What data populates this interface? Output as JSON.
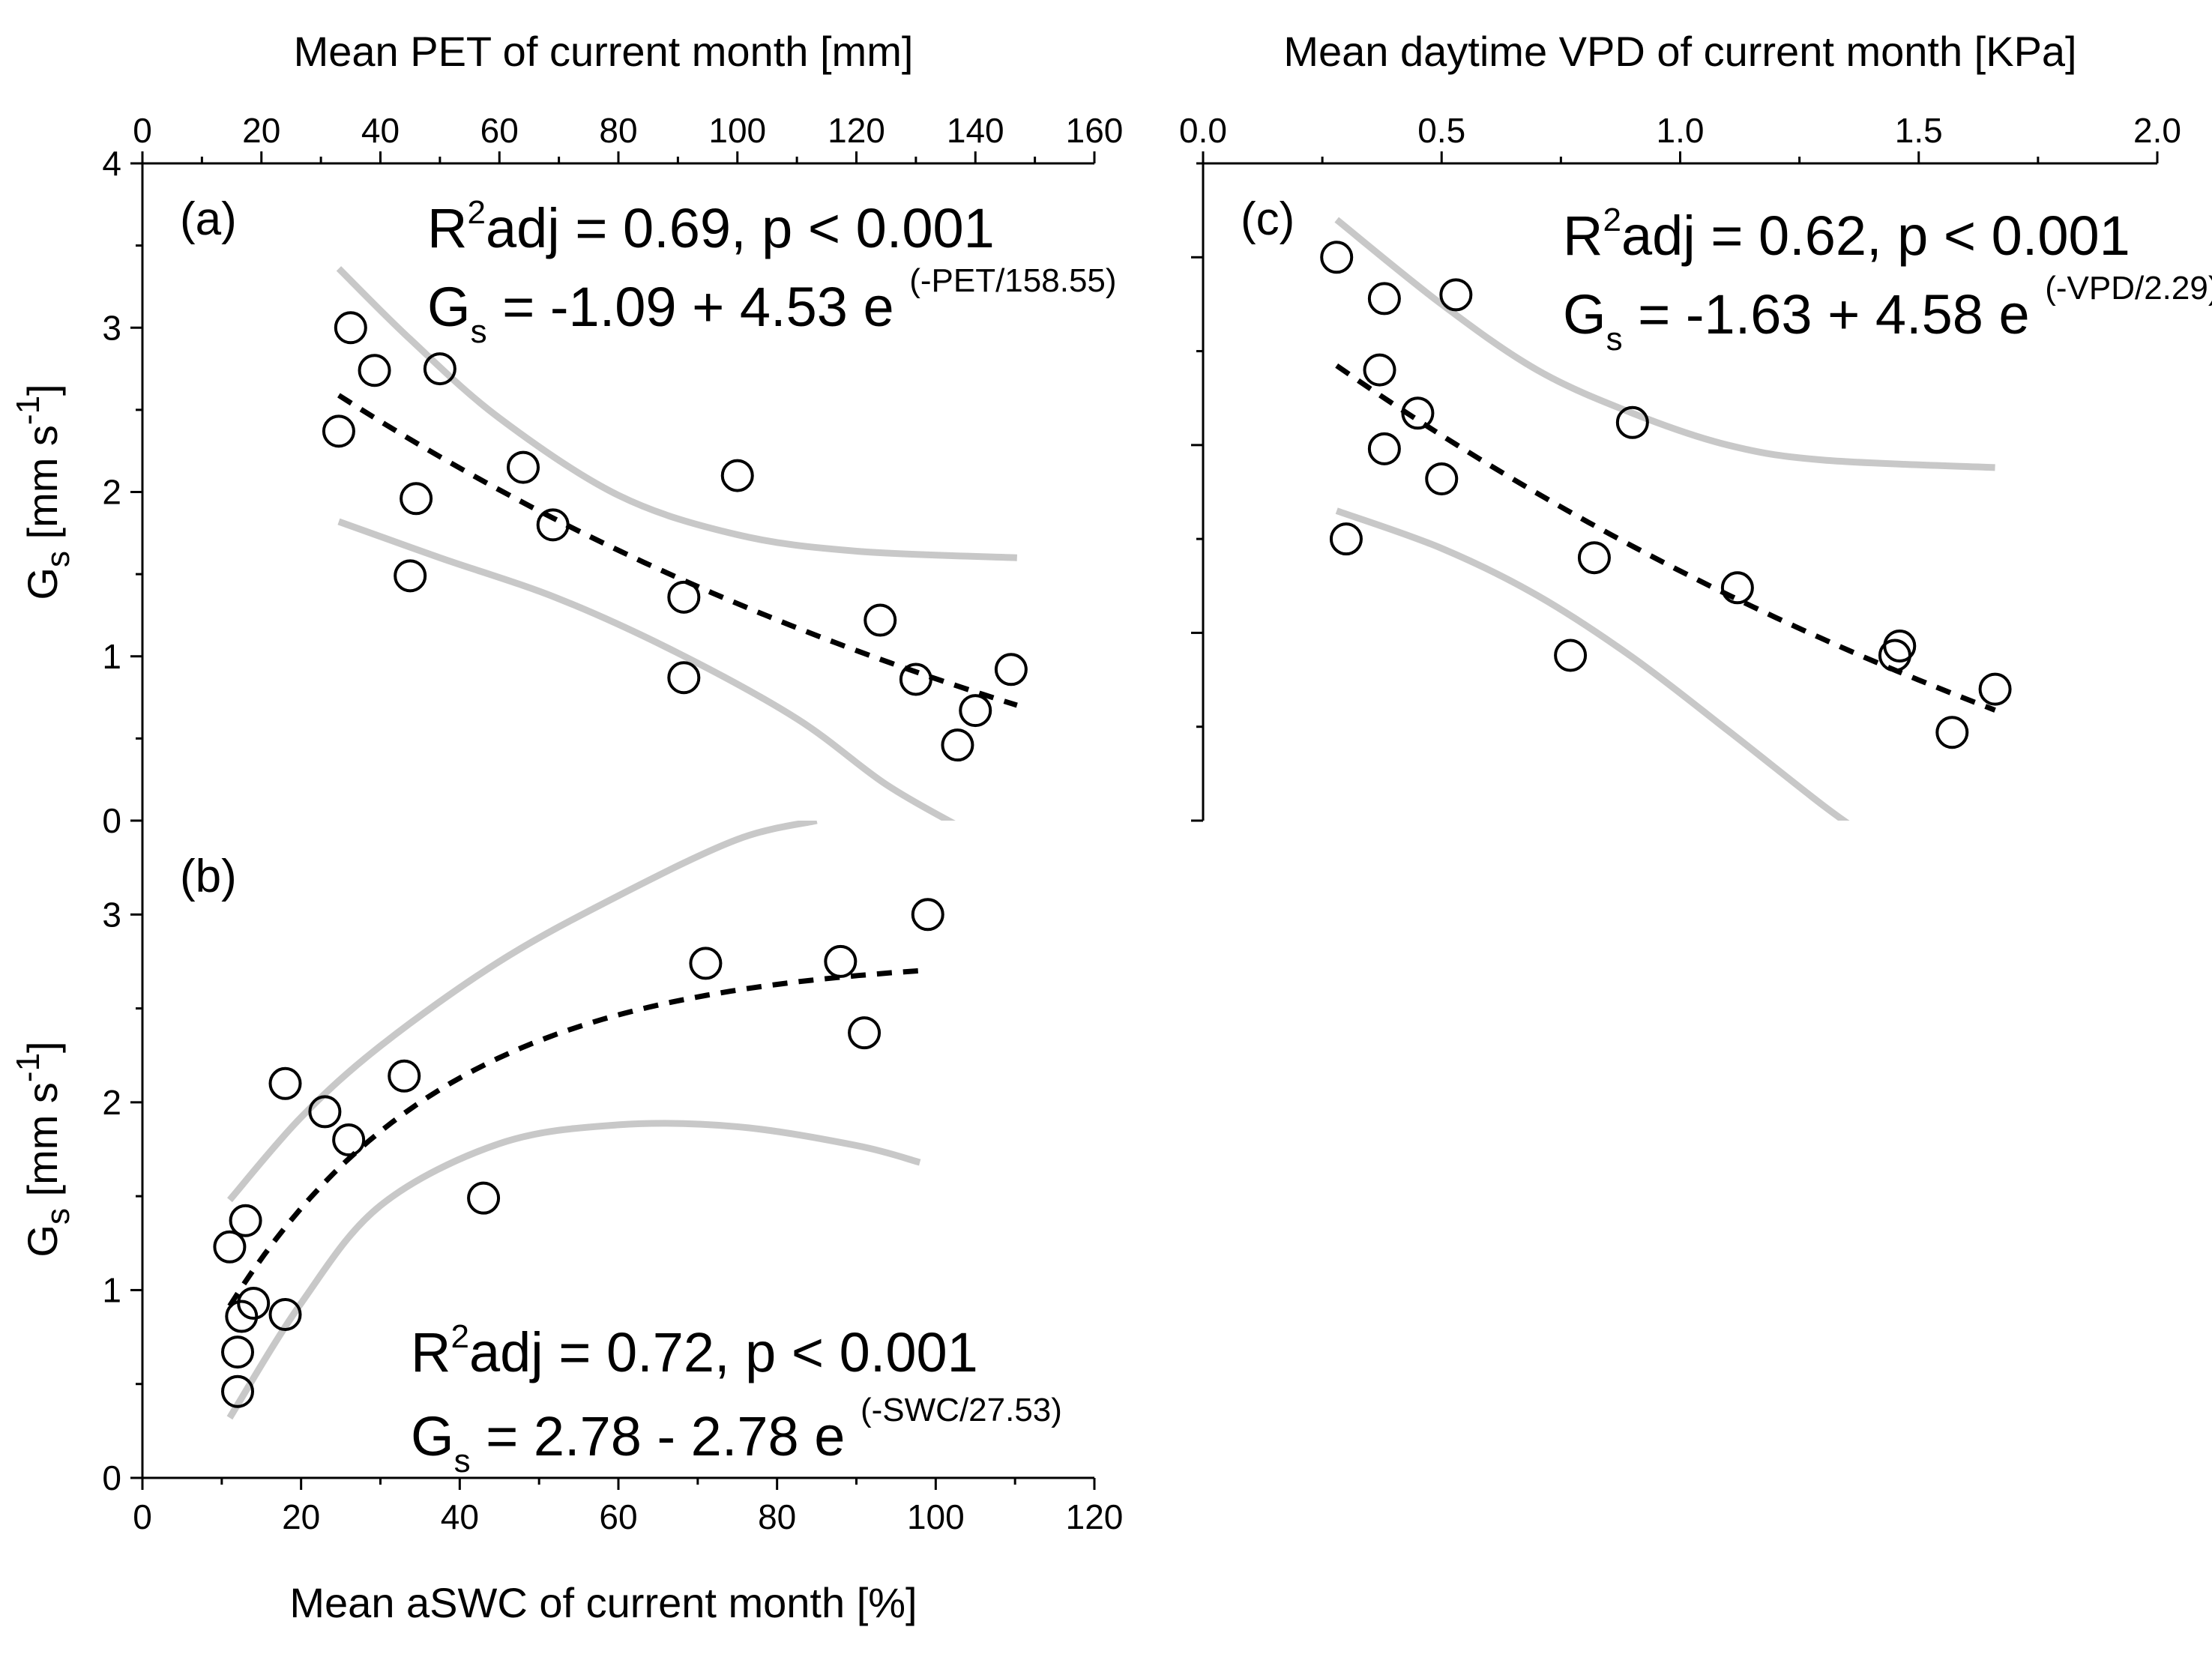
{
  "chart_data": [
    {
      "id": "a",
      "type": "scatter",
      "panel_label": "(a)",
      "xlabel": "Mean PET of current month [mm]",
      "ylabel": "G",
      "ylabel_sub": "s",
      "ylabel_unit_pre": " [mm s",
      "ylabel_unit_sup": "-1",
      "ylabel_unit_post": "]",
      "xlim": [
        0,
        160
      ],
      "ylim": [
        0,
        4
      ],
      "xticks": [
        "0",
        "20",
        "40",
        "60",
        "80",
        "100",
        "120",
        "140",
        "160"
      ],
      "yticks": [
        "0",
        "1",
        "2",
        "3",
        "4"
      ],
      "stats_text": "adj = 0.69, p < 0.001",
      "stats_prefix": "R",
      "stats_sup": "2",
      "eq_lhs": "G",
      "eq_lhs_sub": "s",
      "eq_rhs": " = -1.09 + 4.53 e ",
      "eq_exp": "(-PET/158.55)",
      "fit": {
        "a": -1.09,
        "b": 4.53,
        "c": 158.55,
        "x_range": [
          33,
          147
        ]
      },
      "ci_upper": [
        [
          33,
          3.36
        ],
        [
          45,
          2.93
        ],
        [
          60,
          2.45
        ],
        [
          80,
          1.98
        ],
        [
          100,
          1.74
        ],
        [
          120,
          1.64
        ],
        [
          147,
          1.6
        ]
      ],
      "ci_lower": [
        [
          33,
          1.82
        ],
        [
          50,
          1.6
        ],
        [
          70,
          1.35
        ],
        [
          90,
          1.02
        ],
        [
          110,
          0.62
        ],
        [
          125,
          0.22
        ],
        [
          138,
          -0.05
        ]
      ],
      "points": [
        [
          33,
          2.37
        ],
        [
          35,
          3.0
        ],
        [
          39,
          2.74
        ],
        [
          45,
          1.49
        ],
        [
          46,
          1.96
        ],
        [
          50,
          2.75
        ],
        [
          64,
          2.15
        ],
        [
          69,
          1.8
        ],
        [
          91,
          0.87
        ],
        [
          91,
          1.36
        ],
        [
          100,
          2.1
        ],
        [
          124,
          1.22
        ],
        [
          130,
          0.86
        ],
        [
          137,
          0.46
        ],
        [
          140,
          0.67
        ],
        [
          146,
          0.92
        ]
      ]
    },
    {
      "id": "b",
      "type": "scatter",
      "panel_label": "(b)",
      "xlabel": "Mean aSWC of current month [%]",
      "ylabel": "G",
      "ylabel_sub": "s",
      "ylabel_unit_pre": " [mm s",
      "ylabel_unit_sup": "-1",
      "ylabel_unit_post": "]",
      "xlim": [
        0,
        120
      ],
      "ylim": [
        0,
        3.5
      ],
      "xticks": [
        "0",
        "20",
        "40",
        "60",
        "80",
        "100",
        "120"
      ],
      "yticks": [
        "0",
        "1",
        "2",
        "3"
      ],
      "stats_text": "adj = 0.72, p < 0.001",
      "stats_prefix": "R",
      "stats_sup": "2",
      "eq_lhs": "G",
      "eq_lhs_sub": "s",
      "eq_rhs": " = 2.78 - 2.78 e ",
      "eq_exp": "(-SWC/27.53)",
      "fit": {
        "a": 2.78,
        "b": -2.78,
        "c": 27.53,
        "x_range": [
          11,
          99
        ]
      },
      "ci_upper": [
        [
          11,
          1.48
        ],
        [
          20,
          1.92
        ],
        [
          30,
          2.3
        ],
        [
          45,
          2.75
        ],
        [
          60,
          3.1
        ],
        [
          75,
          3.4
        ],
        [
          85,
          3.5
        ]
      ],
      "ci_lower": [
        [
          11,
          0.32
        ],
        [
          20,
          0.93
        ],
        [
          30,
          1.45
        ],
        [
          45,
          1.78
        ],
        [
          60,
          1.88
        ],
        [
          75,
          1.87
        ],
        [
          90,
          1.77
        ],
        [
          98,
          1.68
        ]
      ],
      "points": [
        [
          11,
          1.23
        ],
        [
          12,
          0.46
        ],
        [
          12,
          0.67
        ],
        [
          12.5,
          0.86
        ],
        [
          13,
          1.37
        ],
        [
          14,
          0.93
        ],
        [
          18,
          0.87
        ],
        [
          18,
          2.1
        ],
        [
          23,
          1.95
        ],
        [
          26,
          1.8
        ],
        [
          33,
          2.14
        ],
        [
          43,
          1.49
        ],
        [
          71,
          2.74
        ],
        [
          88,
          2.75
        ],
        [
          91,
          2.37
        ],
        [
          99,
          3.0
        ]
      ]
    },
    {
      "id": "c",
      "type": "scatter",
      "panel_label": "(c)",
      "xlabel": "Mean daytime VPD of current month [KPa]",
      "xlim": [
        0,
        2
      ],
      "ylim": [
        0,
        3.5
      ],
      "xticks": [
        "0.0",
        "0.5",
        "1.0",
        "1.5",
        "2.0"
      ],
      "stats_text": "adj = 0.62, p < 0.001",
      "stats_prefix": "R",
      "stats_sup": "2",
      "eq_lhs": "G",
      "eq_lhs_sub": "s",
      "eq_rhs": " = -1.63 + 4.58 e ",
      "eq_exp": "(-VPD/2.29)",
      "fit": {
        "a": -1.63,
        "b": 4.58,
        "c": 2.29,
        "x_range": [
          0.28,
          1.66
        ]
      },
      "ci_upper": [
        [
          0.28,
          3.2
        ],
        [
          0.5,
          2.75
        ],
        [
          0.7,
          2.4
        ],
        [
          0.9,
          2.17
        ],
        [
          1.1,
          2.0
        ],
        [
          1.3,
          1.92
        ],
        [
          1.66,
          1.88
        ]
      ],
      "ci_lower": [
        [
          0.28,
          1.65
        ],
        [
          0.5,
          1.45
        ],
        [
          0.7,
          1.2
        ],
        [
          0.9,
          0.87
        ],
        [
          1.1,
          0.48
        ],
        [
          1.3,
          0.08
        ],
        [
          1.4,
          -0.1
        ]
      ],
      "points": [
        [
          0.28,
          3.0
        ],
        [
          0.3,
          1.5
        ],
        [
          0.37,
          2.4
        ],
        [
          0.38,
          2.78
        ],
        [
          0.38,
          1.98
        ],
        [
          0.45,
          2.17
        ],
        [
          0.5,
          1.82
        ],
        [
          0.53,
          2.8
        ],
        [
          0.77,
          0.88
        ],
        [
          0.82,
          1.4
        ],
        [
          0.9,
          2.12
        ],
        [
          1.12,
          1.24
        ],
        [
          1.45,
          0.88
        ],
        [
          1.46,
          0.93
        ],
        [
          1.57,
          0.47
        ],
        [
          1.66,
          0.7
        ]
      ]
    }
  ]
}
